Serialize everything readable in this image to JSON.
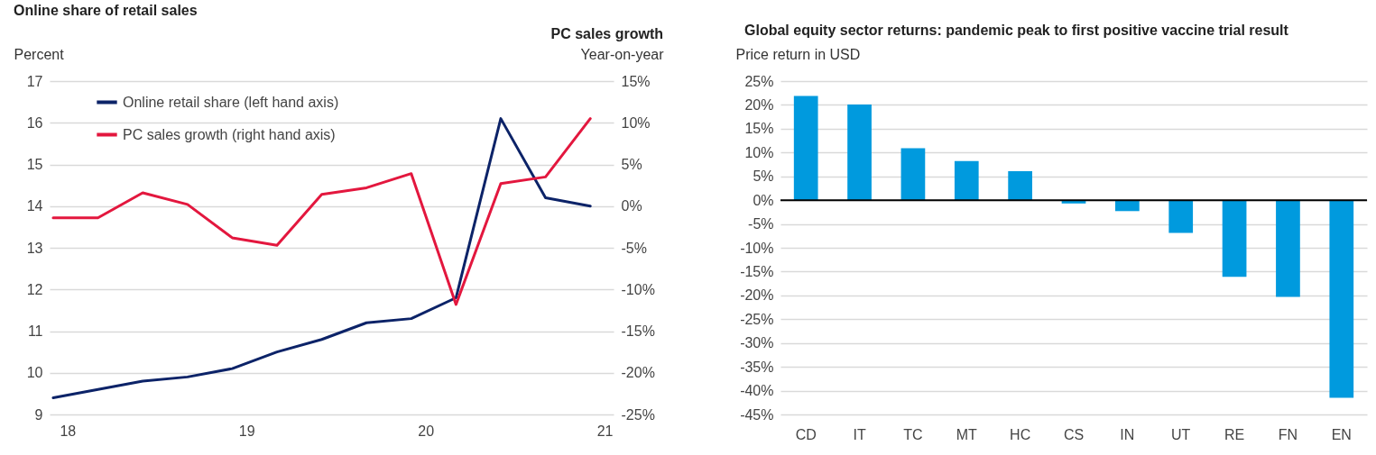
{
  "chart_data": [
    {
      "type": "line",
      "title": "Online share of retail sales",
      "ylabel": "Percent",
      "y2label": "Year-on-year",
      "annotations": [
        "PC sales growth"
      ],
      "x": [
        17.92,
        18.17,
        18.42,
        18.67,
        18.92,
        19.17,
        19.42,
        19.67,
        19.92,
        20.17,
        20.42,
        20.67,
        20.92
      ],
      "series": [
        {
          "name": "Online retail share (left hand axis)",
          "color": "#0c2368",
          "values": [
            9.4,
            9.6,
            9.8,
            9.9,
            10.1,
            10.5,
            10.8,
            11.2,
            11.3,
            11.8,
            16.1,
            14.2,
            14.0
          ]
        },
        {
          "name": "PC sales growth (right hand axis)",
          "color": "#e3173e",
          "axis": "y2",
          "values": [
            -1.4,
            -1.4,
            1.6,
            0.2,
            -3.8,
            -4.7,
            1.4,
            2.2,
            3.9,
            -11.8,
            2.7,
            3.5,
            10.5
          ]
        }
      ],
      "xlim": [
        17.9,
        21.05
      ],
      "xticks": [
        18,
        19,
        20,
        21
      ],
      "ylim": [
        9,
        17
      ],
      "yticks": [
        9,
        10,
        11,
        12,
        13,
        14,
        15,
        16,
        17
      ],
      "y2lim": [
        -25,
        15
      ],
      "y2ticks": [
        {
          "value": -25,
          "label": "-25%"
        },
        {
          "value": -20,
          "label": "-20%"
        },
        {
          "value": -15,
          "label": "-15%"
        },
        {
          "value": -10,
          "label": "-10%"
        },
        {
          "value": -5,
          "label": "-5%"
        },
        {
          "value": 0,
          "label": "0%"
        },
        {
          "value": 5,
          "label": "5%"
        },
        {
          "value": 10,
          "label": "10%"
        },
        {
          "value": 15,
          "label": "15%"
        }
      ],
      "grid": "y",
      "legend": "top left",
      "line_style": "solid",
      "marker": "none"
    },
    {
      "type": "bar",
      "title": "Global equity sector returns: pandemic peak to first positive vaccine trial result",
      "ylabel": "Price return in USD",
      "categories": [
        "CD",
        "IT",
        "TC",
        "MT",
        "HC",
        "CS",
        "IN",
        "UT",
        "RE",
        "FN",
        "EN"
      ],
      "values": [
        21.9,
        20.1,
        10.9,
        8.2,
        6.1,
        -0.7,
        -2.3,
        -6.9,
        -16.1,
        -20.3,
        -41.5
      ],
      "color": "#009ade",
      "ylim": [
        -45,
        25
      ],
      "yticks": [
        {
          "value": -45,
          "label": "-45%"
        },
        {
          "value": -40,
          "label": "-40%"
        },
        {
          "value": -35,
          "label": "-35%"
        },
        {
          "value": -30,
          "label": "-30%"
        },
        {
          "value": -25,
          "label": "-25%"
        },
        {
          "value": -20,
          "label": "-20%"
        },
        {
          "value": -15,
          "label": "-15%"
        },
        {
          "value": -10,
          "label": "-10%"
        },
        {
          "value": -5,
          "label": "-5%"
        },
        {
          "value": 0,
          "label": "0%"
        },
        {
          "value": 5,
          "label": "5%"
        },
        {
          "value": 10,
          "label": "10%"
        },
        {
          "value": 15,
          "label": "15%"
        },
        {
          "value": 20,
          "label": "20%"
        },
        {
          "value": 25,
          "label": "25%"
        }
      ],
      "ref_lines": [
        {
          "axis": "y",
          "value": 0,
          "color": "#000000"
        }
      ],
      "grid": "y"
    }
  ]
}
